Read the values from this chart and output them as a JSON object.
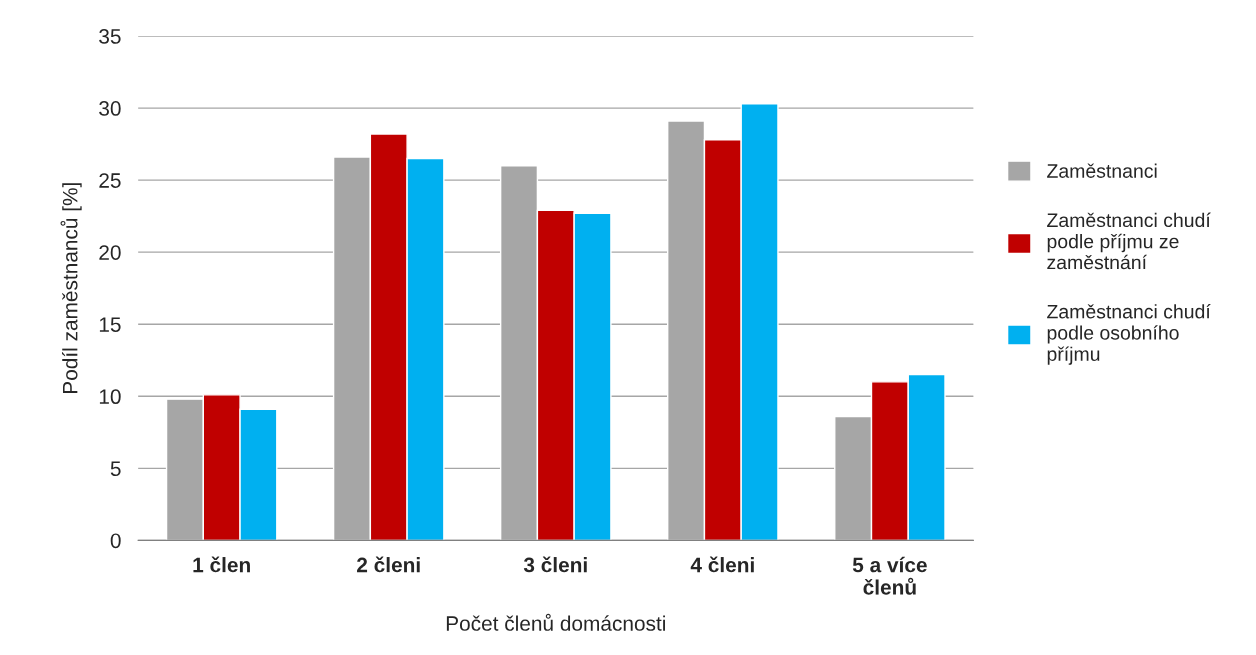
{
  "chart_data": {
    "type": "bar",
    "xlabel": "Počet členů domácnosti",
    "ylabel": "Podíl zaměstnanců [%]",
    "categories": [
      "1 člen",
      "2 členi",
      "3 členi",
      "4 členi",
      "5 a více\nčlenů"
    ],
    "series": [
      {
        "name": "Zaměstnanci",
        "color": "#a6a6a6",
        "values": [
          9.8,
          26.6,
          26.0,
          29.1,
          8.6
        ]
      },
      {
        "name": "Zaměstnanci chudí\npodle příjmu ze\nzaměstnání",
        "color": "#c00000",
        "values": [
          10.1,
          28.2,
          22.9,
          27.8,
          11.0
        ]
      },
      {
        "name": "Zaměstnanci chudí\npodle osobního\npříjmu",
        "color": "#00b0f0",
        "values": [
          9.1,
          26.5,
          22.7,
          30.3,
          11.5
        ]
      }
    ],
    "ylim": [
      0,
      35
    ],
    "yticks": [
      0,
      5,
      10,
      15,
      20,
      25,
      30,
      35
    ],
    "grid": "y",
    "legend": "right"
  }
}
